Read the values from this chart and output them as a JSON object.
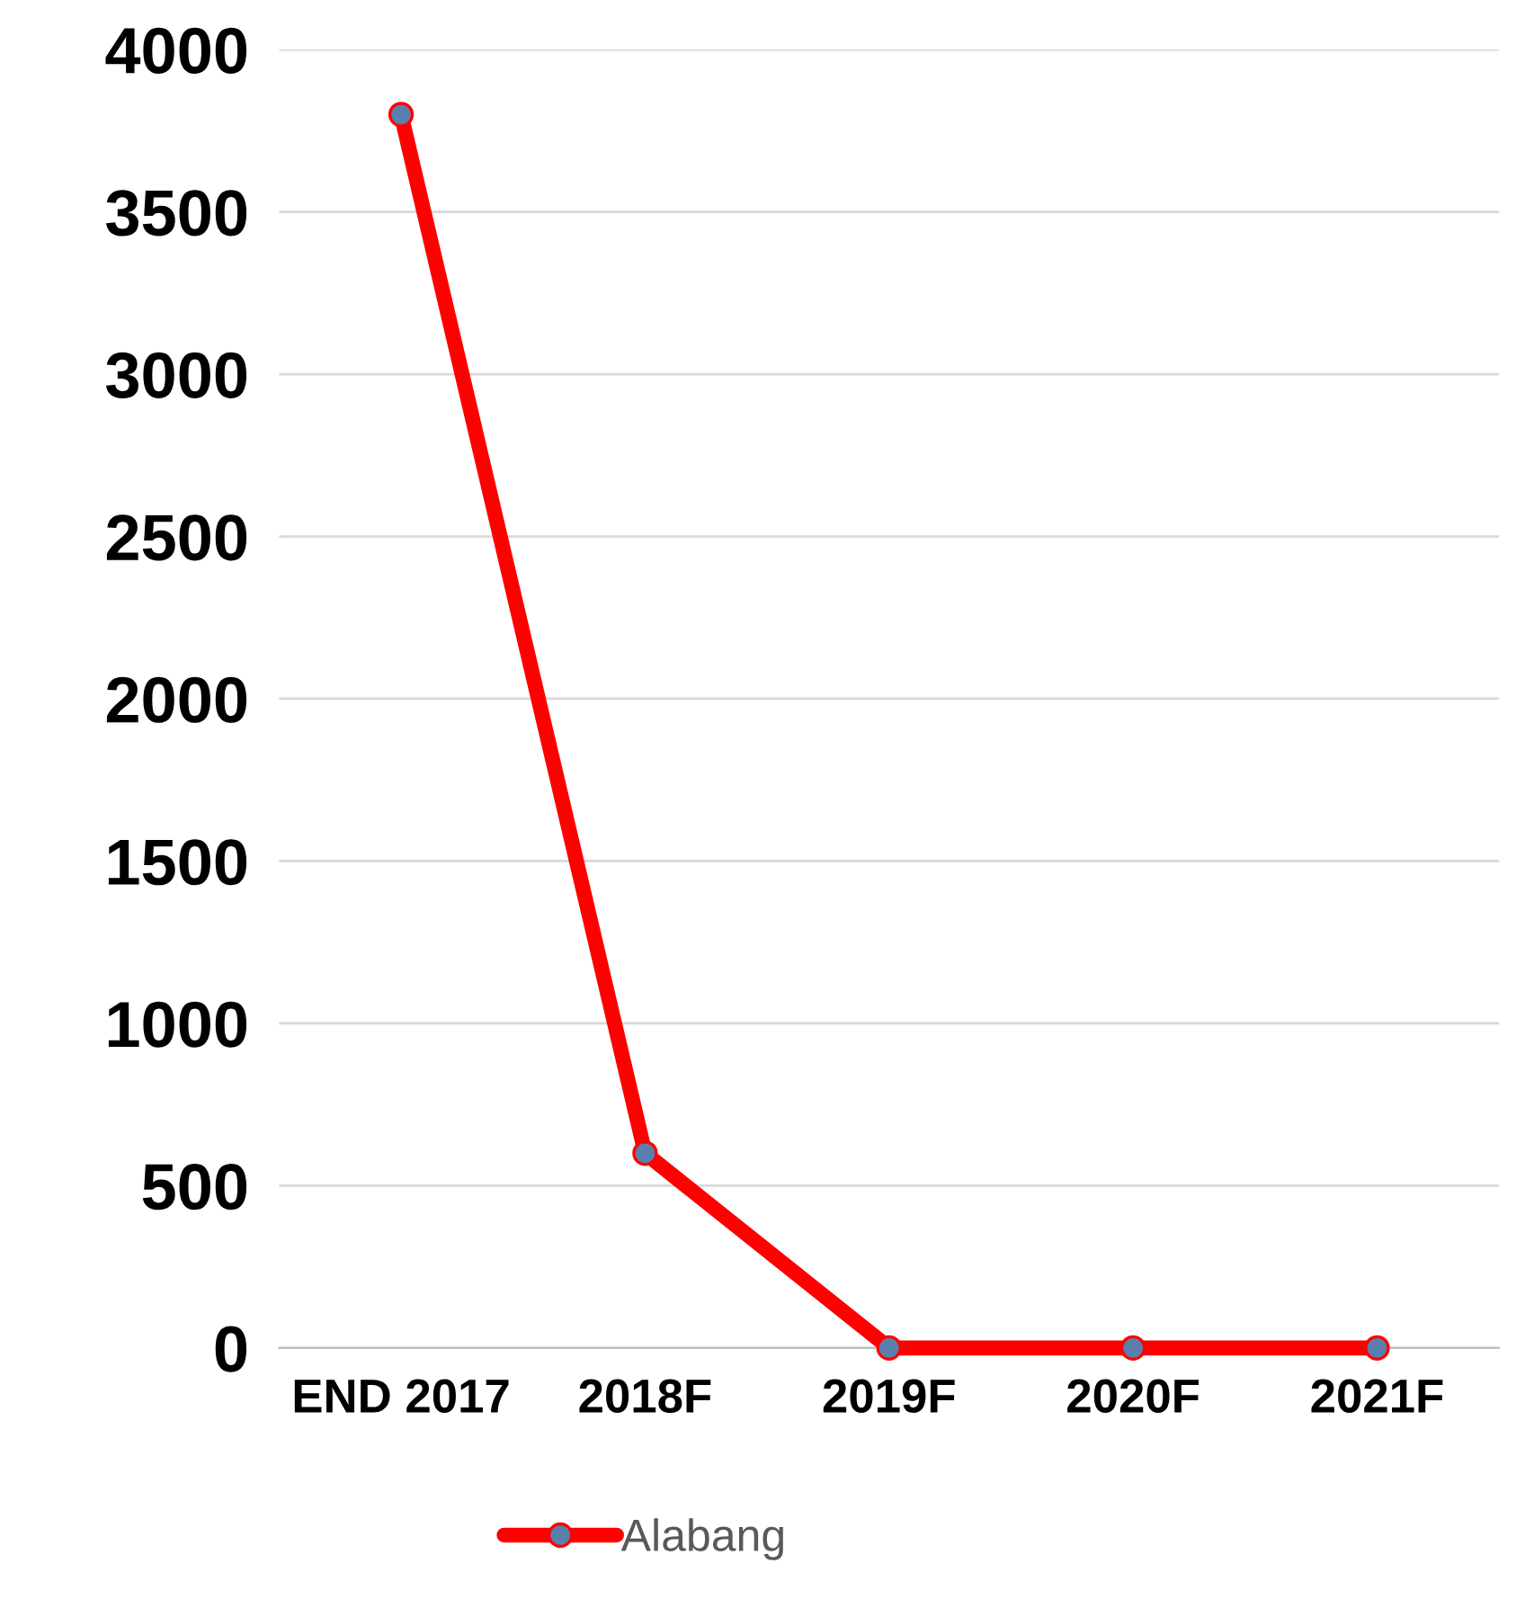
{
  "chart_data": {
    "type": "line",
    "categories": [
      "END 2017",
      "2018F",
      "2019F",
      "2020F",
      "2021F"
    ],
    "series": [
      {
        "name": "Alabang",
        "color": "#ff0000",
        "values": [
          3800,
          600,
          0,
          0,
          0
        ]
      }
    ],
    "ylim": [
      0,
      4000
    ],
    "yticks": [
      0,
      500,
      1000,
      1500,
      2000,
      2500,
      3000,
      3500,
      4000
    ],
    "grid": "y",
    "legend": "bottom",
    "marker": "circle",
    "line_style": "solid"
  }
}
